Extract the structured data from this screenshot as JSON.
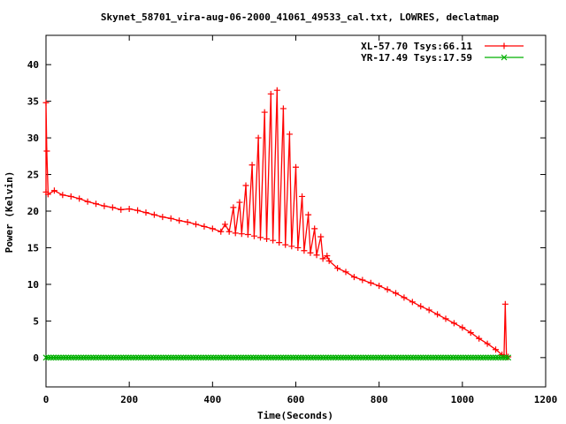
{
  "chart_data": {
    "type": "line",
    "title": "Skynet_58701_vira-aug-06-2000_41061_49533_cal.txt, LOWRES, declatmap",
    "xlabel": "Time(Seconds)",
    "ylabel": "Power (Kelvin)",
    "xlim": [
      0,
      1200
    ],
    "ylim": [
      -4,
      44
    ],
    "x_ticks": [
      "0",
      "200",
      "400",
      "600",
      "800",
      "1000",
      "1200"
    ],
    "y_ticks": [
      "0",
      "5",
      "10",
      "15",
      "20",
      "25",
      "30",
      "35",
      "40"
    ],
    "grid": false,
    "legend_position": "top-right",
    "series": [
      {
        "name": "XL-57.70 Tsys:66.11",
        "color": "#ff0000",
        "marker": "plus",
        "points": [
          [
            0,
            22.6
          ],
          [
            0,
            34.8
          ],
          [
            2,
            28.2
          ],
          [
            5,
            22.3
          ],
          [
            20,
            22.8
          ],
          [
            40,
            22.2
          ],
          [
            60,
            22.0
          ],
          [
            80,
            21.7
          ],
          [
            100,
            21.3
          ],
          [
            120,
            21.0
          ],
          [
            140,
            20.7
          ],
          [
            160,
            20.5
          ],
          [
            180,
            20.2
          ],
          [
            200,
            20.3
          ],
          [
            220,
            20.1
          ],
          [
            240,
            19.8
          ],
          [
            260,
            19.5
          ],
          [
            280,
            19.2
          ],
          [
            300,
            19.0
          ],
          [
            320,
            18.7
          ],
          [
            340,
            18.5
          ],
          [
            360,
            18.2
          ],
          [
            380,
            17.9
          ],
          [
            400,
            17.6
          ],
          [
            420,
            17.2
          ],
          [
            430,
            18.2
          ],
          [
            440,
            17.2
          ],
          [
            450,
            20.5
          ],
          [
            455,
            17.0
          ],
          [
            465,
            21.2
          ],
          [
            470,
            16.9
          ],
          [
            480,
            23.5
          ],
          [
            485,
            16.8
          ],
          [
            495,
            26.3
          ],
          [
            500,
            16.6
          ],
          [
            510,
            30.0
          ],
          [
            515,
            16.4
          ],
          [
            525,
            33.5
          ],
          [
            530,
            16.2
          ],
          [
            540,
            36.0
          ],
          [
            545,
            16.0
          ],
          [
            555,
            36.5
          ],
          [
            560,
            15.7
          ],
          [
            570,
            34.0
          ],
          [
            575,
            15.4
          ],
          [
            585,
            30.5
          ],
          [
            590,
            15.2
          ],
          [
            600,
            26.0
          ],
          [
            605,
            15.0
          ],
          [
            615,
            22.0
          ],
          [
            620,
            14.6
          ],
          [
            630,
            19.5
          ],
          [
            635,
            14.3
          ],
          [
            645,
            17.6
          ],
          [
            650,
            14.0
          ],
          [
            660,
            16.5
          ],
          [
            665,
            13.5
          ],
          [
            675,
            13.9
          ],
          [
            680,
            13.2
          ],
          [
            700,
            12.2
          ],
          [
            720,
            11.7
          ],
          [
            740,
            11.0
          ],
          [
            760,
            10.6
          ],
          [
            780,
            10.2
          ],
          [
            800,
            9.8
          ],
          [
            820,
            9.3
          ],
          [
            840,
            8.8
          ],
          [
            860,
            8.2
          ],
          [
            880,
            7.6
          ],
          [
            900,
            7.0
          ],
          [
            920,
            6.5
          ],
          [
            940,
            5.9
          ],
          [
            960,
            5.3
          ],
          [
            980,
            4.7
          ],
          [
            1000,
            4.1
          ],
          [
            1020,
            3.4
          ],
          [
            1040,
            2.6
          ],
          [
            1060,
            1.9
          ],
          [
            1080,
            1.1
          ],
          [
            1095,
            0.4
          ],
          [
            1100,
            0.1
          ],
          [
            1103,
            7.3
          ],
          [
            1106,
            0.1
          ],
          [
            1110,
            0.1
          ]
        ]
      },
      {
        "name": "YR-17.49 Tsys:17.59",
        "color": "#00b000",
        "marker": "x",
        "points": [
          [
            0,
            0.0
          ],
          [
            1110,
            0.0
          ]
        ]
      }
    ]
  }
}
